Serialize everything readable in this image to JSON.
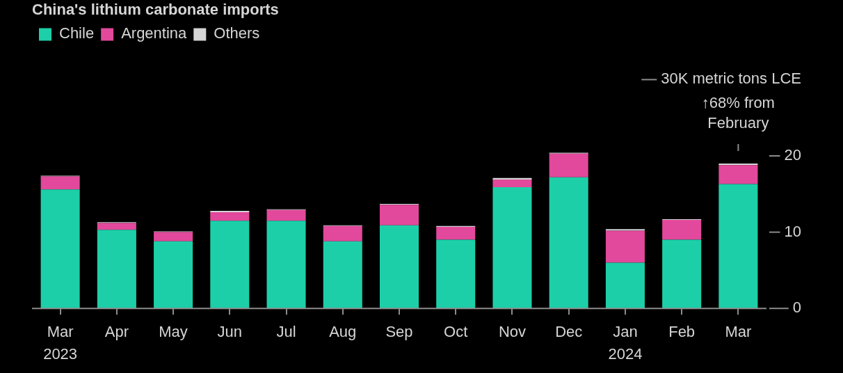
{
  "chart_data": {
    "type": "bar",
    "title": "China's lithium carbonate imports",
    "categories": [
      "Mar\n2023",
      "Apr",
      "May",
      "Jun",
      "Jul",
      "Aug",
      "Sep",
      "Oct",
      "Nov",
      "Dec",
      "Jan\n2024",
      "Feb",
      "Mar"
    ],
    "series": [
      {
        "name": "Chile",
        "color": "#1dcfa8",
        "values": [
          15.6,
          10.3,
          8.8,
          11.5,
          11.5,
          8.8,
          10.9,
          9.0,
          15.9,
          17.2,
          6.0,
          9.0,
          16.3
        ]
      },
      {
        "name": "Argentina",
        "color": "#e2489b",
        "values": [
          1.7,
          0.9,
          1.2,
          1.1,
          1.4,
          2.0,
          2.7,
          1.7,
          1.0,
          3.1,
          4.2,
          2.6,
          2.5
        ]
      },
      {
        "name": "Others",
        "color": "#d4d4d4",
        "values": [
          0.1,
          0.1,
          0.1,
          0.2,
          0.1,
          0.1,
          0.1,
          0.1,
          0.2,
          0.1,
          0.2,
          0.1,
          0.2
        ]
      }
    ],
    "stacked": true,
    "ylim": [
      0,
      30
    ],
    "yticks": [
      0,
      10,
      20,
      {
        "value": 30,
        "label": "30K metric tons LCE"
      }
    ],
    "grid": false,
    "legend": "top left",
    "annotations": [
      {
        "text": "↑68% from\nFebruary",
        "x": "Mar",
        "y": 19.0
      }
    ]
  }
}
